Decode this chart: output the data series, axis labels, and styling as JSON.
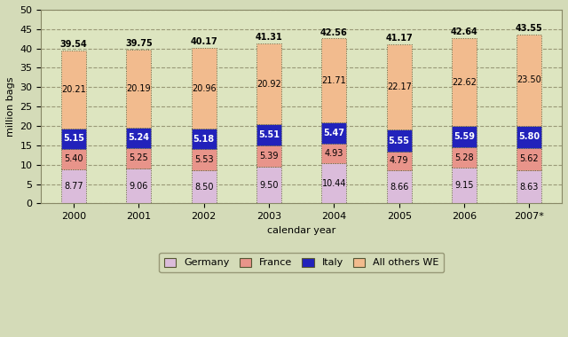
{
  "years": [
    "2000",
    "2001",
    "2002",
    "2003",
    "2004",
    "2005",
    "2006",
    "2007*"
  ],
  "germany": [
    8.77,
    9.06,
    8.5,
    9.5,
    10.44,
    8.66,
    9.15,
    8.63
  ],
  "france": [
    5.4,
    5.25,
    5.53,
    5.39,
    4.93,
    4.79,
    5.28,
    5.62
  ],
  "italy": [
    5.15,
    5.24,
    5.18,
    5.51,
    5.47,
    5.55,
    5.59,
    5.8
  ],
  "all_others": [
    20.21,
    20.19,
    20.96,
    20.92,
    21.71,
    22.17,
    22.62,
    23.5
  ],
  "totals": [
    39.54,
    39.75,
    40.17,
    41.31,
    42.56,
    41.17,
    42.64,
    43.55
  ],
  "germany_color": "#dbbcdb",
  "france_color": "#e8948a",
  "italy_color": "#2222bb",
  "all_others_color": "#f2bb8e",
  "background_color": "#d4dbb8",
  "plot_bg_color": "#dde5c0",
  "bar_edge_color": "#666644",
  "ylabel": "million bags",
  "xlabel": "calendar year",
  "ylim": [
    0,
    50
  ],
  "yticks": [
    0,
    5,
    10,
    15,
    20,
    25,
    30,
    35,
    40,
    45,
    50
  ],
  "grid_color": "#999977",
  "legend_labels": [
    "Germany",
    "France",
    "Italy",
    "All others WE"
  ],
  "label_fontsize": 7,
  "tick_fontsize": 8,
  "legend_fontsize": 8,
  "bar_width": 0.38
}
